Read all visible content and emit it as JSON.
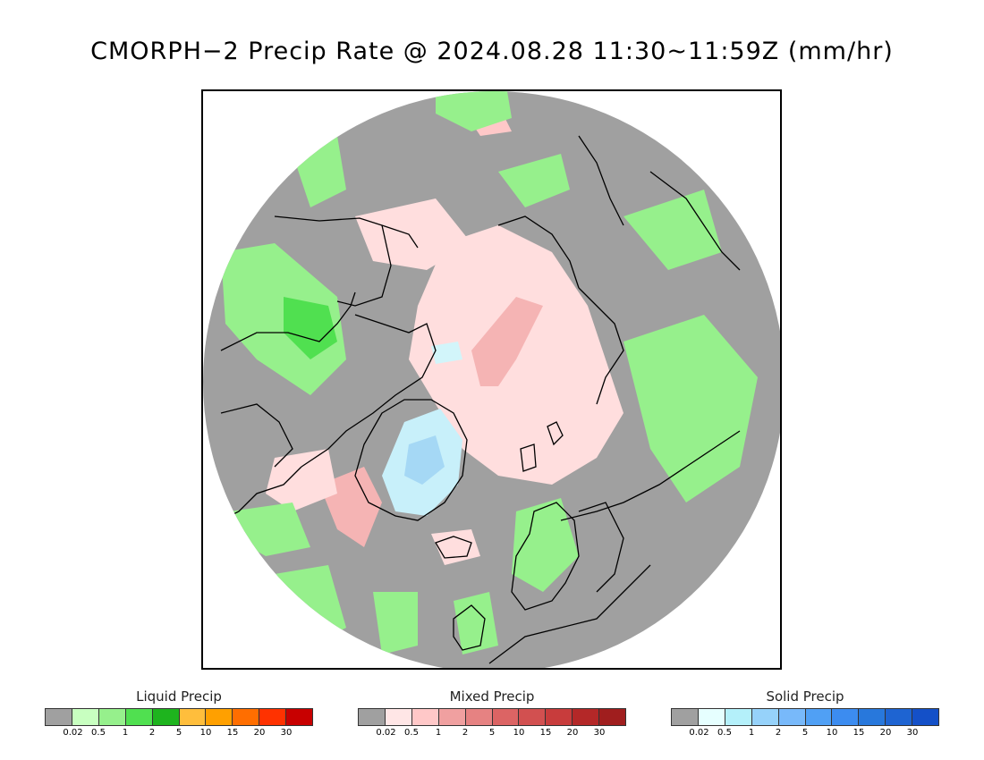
{
  "title": "CMORPH−2 Precip Rate @ 2024.08.28 11:30~11:59Z (mm/hr)",
  "legends": [
    {
      "key": "liquid",
      "title": "Liquid Precip",
      "ticks": [
        "0.02",
        "0.5",
        "1",
        "2",
        "5",
        "10",
        "15",
        "20",
        "30"
      ],
      "colors": [
        "#a0a0a0",
        "#c8ffc0",
        "#96f08c",
        "#50e050",
        "#1eb41e",
        "#ffbe3c",
        "#ffa000",
        "#ff6e00",
        "#ff3200",
        "#c80000"
      ]
    },
    {
      "key": "mixed",
      "title": "Mixed Precip",
      "ticks": [
        "0.02",
        "0.5",
        "1",
        "2",
        "5",
        "10",
        "15",
        "20",
        "30"
      ],
      "colors": [
        "#a0a0a0",
        "#ffe6e6",
        "#ffc8c8",
        "#f0a0a0",
        "#e68282",
        "#dc6464",
        "#d25050",
        "#c83c3c",
        "#b42828",
        "#a01e1e"
      ]
    },
    {
      "key": "solid",
      "title": "Solid Precip",
      "ticks": [
        "0.02",
        "0.5",
        "1",
        "2",
        "5",
        "10",
        "15",
        "20",
        "30"
      ],
      "colors": [
        "#a0a0a0",
        "#e6ffff",
        "#b4f0fa",
        "#96d2fa",
        "#78b9fa",
        "#50a0f5",
        "#3c8cf0",
        "#2878dc",
        "#1e64d2",
        "#1450c8"
      ]
    }
  ],
  "map": {
    "projection": "north-polar-stereographic",
    "background_color": "#a0a0a0",
    "coastline_color": "#000000"
  }
}
